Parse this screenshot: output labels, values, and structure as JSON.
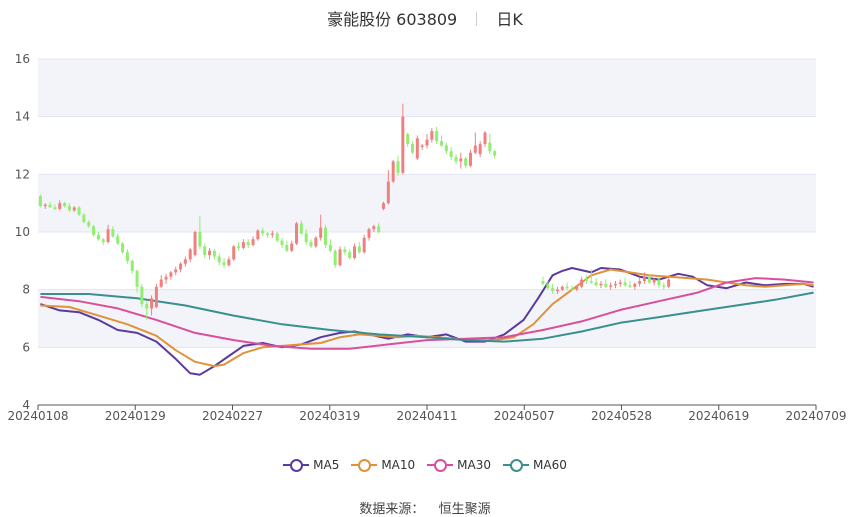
{
  "header": {
    "title": "豪能股份 603809",
    "period": "日K"
  },
  "source": {
    "label": "数据来源：",
    "name": "恒生聚源"
  },
  "colors": {
    "up": "#f08080",
    "down": "#90ee70",
    "grid_band": "#f3f4f9",
    "grid_line": "#e3e6f0"
  },
  "chart_data": {
    "type": "candlestick",
    "x_tick_labels": [
      "20240108",
      "20240129",
      "20240227",
      "20240319",
      "20240411",
      "20240507",
      "20240528",
      "20240619",
      "20240709"
    ],
    "y_ticks": [
      4,
      6,
      8,
      10,
      12,
      14,
      16
    ],
    "ylim": [
      4,
      16
    ],
    "legend_position": "bottom",
    "grid": true,
    "candles_ohlc": [
      [
        11.25,
        11.3,
        10.85,
        10.9
      ],
      [
        10.9,
        11.0,
        10.8,
        10.95
      ],
      [
        10.95,
        11.05,
        10.85,
        10.85
      ],
      [
        10.85,
        10.95,
        10.75,
        10.8
      ],
      [
        10.8,
        11.1,
        10.75,
        11.0
      ],
      [
        11.0,
        11.05,
        10.85,
        10.9
      ],
      [
        10.9,
        11.0,
        10.7,
        10.75
      ],
      [
        10.75,
        10.9,
        10.7,
        10.85
      ],
      [
        10.85,
        10.9,
        10.55,
        10.6
      ],
      [
        10.6,
        10.65,
        10.3,
        10.35
      ],
      [
        10.35,
        10.4,
        10.15,
        10.2
      ],
      [
        10.2,
        10.25,
        9.85,
        9.9
      ],
      [
        9.9,
        10.0,
        9.7,
        9.75
      ],
      [
        9.75,
        9.8,
        9.55,
        9.65
      ],
      [
        9.65,
        10.25,
        9.6,
        10.1
      ],
      [
        10.1,
        10.2,
        9.8,
        9.85
      ],
      [
        9.85,
        9.95,
        9.55,
        9.6
      ],
      [
        9.6,
        9.65,
        9.25,
        9.3
      ],
      [
        9.3,
        9.4,
        8.9,
        9.0
      ],
      [
        9.0,
        9.05,
        8.55,
        8.65
      ],
      [
        8.65,
        8.7,
        7.9,
        8.1
      ],
      [
        8.1,
        8.2,
        7.4,
        7.5
      ],
      [
        7.5,
        7.6,
        6.95,
        7.35
      ],
      [
        7.35,
        7.8,
        7.1,
        7.7
      ],
      [
        7.4,
        8.2,
        7.35,
        8.1
      ],
      [
        8.1,
        8.5,
        8.05,
        8.35
      ],
      [
        8.35,
        8.55,
        8.2,
        8.45
      ],
      [
        8.45,
        8.65,
        8.35,
        8.6
      ],
      [
        8.6,
        8.8,
        8.5,
        8.7
      ],
      [
        8.7,
        8.95,
        8.6,
        8.9
      ],
      [
        8.9,
        9.15,
        8.8,
        9.05
      ],
      [
        9.05,
        9.45,
        8.95,
        9.4
      ],
      [
        9.2,
        10.05,
        9.15,
        10.0
      ],
      [
        10.0,
        10.55,
        9.4,
        9.5
      ],
      [
        9.5,
        9.6,
        9.1,
        9.2
      ],
      [
        9.2,
        9.45,
        9.05,
        9.35
      ],
      [
        9.35,
        9.4,
        9.05,
        9.15
      ],
      [
        9.15,
        9.25,
        8.85,
        8.95
      ],
      [
        8.95,
        9.1,
        8.75,
        8.85
      ],
      [
        8.85,
        9.15,
        8.8,
        9.05
      ],
      [
        9.05,
        9.55,
        9.0,
        9.5
      ],
      [
        9.5,
        9.65,
        9.35,
        9.45
      ],
      [
        9.45,
        9.75,
        9.4,
        9.65
      ],
      [
        9.65,
        9.75,
        9.45,
        9.55
      ],
      [
        9.55,
        9.85,
        9.5,
        9.75
      ],
      [
        9.75,
        10.1,
        9.7,
        10.05
      ],
      [
        10.05,
        10.15,
        9.85,
        9.95
      ],
      [
        9.95,
        10.0,
        9.8,
        9.9
      ],
      [
        9.9,
        10.05,
        9.8,
        9.95
      ],
      [
        9.95,
        10.0,
        9.65,
        9.7
      ],
      [
        9.7,
        9.8,
        9.45,
        9.55
      ],
      [
        9.55,
        9.7,
        9.3,
        9.35
      ],
      [
        9.35,
        9.7,
        9.3,
        9.6
      ],
      [
        9.6,
        10.35,
        9.55,
        10.3
      ],
      [
        10.3,
        10.4,
        9.9,
        9.95
      ],
      [
        9.95,
        10.1,
        9.55,
        9.65
      ],
      [
        9.65,
        9.75,
        9.45,
        9.5
      ],
      [
        9.5,
        9.85,
        9.45,
        9.8
      ],
      [
        9.8,
        10.6,
        9.7,
        10.15
      ],
      [
        10.15,
        10.25,
        9.45,
        9.55
      ],
      [
        9.55,
        9.75,
        9.3,
        9.35
      ],
      [
        9.35,
        9.4,
        8.75,
        8.85
      ],
      [
        8.85,
        9.5,
        8.8,
        9.4
      ],
      [
        9.4,
        9.5,
        9.2,
        9.3
      ],
      [
        9.3,
        9.4,
        9.05,
        9.1
      ],
      [
        9.1,
        9.6,
        9.05,
        9.5
      ],
      [
        9.5,
        9.65,
        9.25,
        9.3
      ],
      [
        9.3,
        9.9,
        9.25,
        9.8
      ],
      [
        9.8,
        10.15,
        9.7,
        10.1
      ],
      [
        10.1,
        10.25,
        10.0,
        10.2
      ],
      [
        10.2,
        10.3,
        9.95,
        10.0
      ],
      [
        10.8,
        11.05,
        10.75,
        11.0
      ],
      [
        11.0,
        12.15,
        10.95,
        11.75
      ],
      [
        11.75,
        12.5,
        11.7,
        12.45
      ],
      [
        12.45,
        12.65,
        11.95,
        12.05
      ],
      [
        12.05,
        14.45,
        12.0,
        14.0
      ],
      [
        13.4,
        13.45,
        12.95,
        13.05
      ],
      [
        13.05,
        13.15,
        12.7,
        12.75
      ],
      [
        12.55,
        13.35,
        12.5,
        13.25
      ],
      [
        12.95,
        13.05,
        12.85,
        13.0
      ],
      [
        13.0,
        13.4,
        12.9,
        13.2
      ],
      [
        13.2,
        13.6,
        13.1,
        13.5
      ],
      [
        13.5,
        13.65,
        13.05,
        13.15
      ],
      [
        13.15,
        13.35,
        12.95,
        13.0
      ],
      [
        13.0,
        13.1,
        12.7,
        12.8
      ],
      [
        12.8,
        12.95,
        12.5,
        12.6
      ],
      [
        12.6,
        12.7,
        12.35,
        12.45
      ],
      [
        12.45,
        12.75,
        12.2,
        12.55
      ],
      [
        12.55,
        12.6,
        12.2,
        12.3
      ],
      [
        12.3,
        12.85,
        12.25,
        12.75
      ],
      [
        12.75,
        13.45,
        12.7,
        13.0
      ],
      [
        12.7,
        13.15,
        12.6,
        13.05
      ],
      [
        13.05,
        13.5,
        12.95,
        13.45
      ],
      [
        13.1,
        13.4,
        12.7,
        12.8
      ],
      [
        12.8,
        12.85,
        12.55,
        12.65
      ]
    ],
    "gap_start_index": 95,
    "gap_length": 9,
    "candles_after_gap_ohlc": [
      [
        8.3,
        8.45,
        8.15,
        8.2
      ],
      [
        8.2,
        8.3,
        8.0,
        8.05
      ],
      [
        8.05,
        8.2,
        7.85,
        7.95
      ],
      [
        7.95,
        8.1,
        7.85,
        8.0
      ],
      [
        8.0,
        8.15,
        7.95,
        8.1
      ],
      [
        8.1,
        8.25,
        8.0,
        8.05
      ],
      [
        8.05,
        8.15,
        7.95,
        8.0
      ],
      [
        8.0,
        8.15,
        7.95,
        8.1
      ],
      [
        8.1,
        8.45,
        8.05,
        8.35
      ],
      [
        8.35,
        8.5,
        8.2,
        8.3
      ],
      [
        8.3,
        8.7,
        8.2,
        8.25
      ],
      [
        8.25,
        8.4,
        8.1,
        8.15
      ],
      [
        8.15,
        8.3,
        8.05,
        8.2
      ],
      [
        8.2,
        8.35,
        8.05,
        8.1
      ],
      [
        8.1,
        8.25,
        8.0,
        8.15
      ],
      [
        8.15,
        8.3,
        8.05,
        8.2
      ],
      [
        8.2,
        8.35,
        8.1,
        8.25
      ],
      [
        8.25,
        8.4,
        8.1,
        8.15
      ],
      [
        8.15,
        8.3,
        8.05,
        8.1
      ],
      [
        8.1,
        8.25,
        8.0,
        8.2
      ],
      [
        8.2,
        8.4,
        8.1,
        8.3
      ],
      [
        8.3,
        8.6,
        8.2,
        8.45
      ],
      [
        8.45,
        8.55,
        8.2,
        8.25
      ],
      [
        8.25,
        8.4,
        8.15,
        8.35
      ],
      [
        8.35,
        8.45,
        8.05,
        8.15
      ],
      [
        8.15,
        8.25,
        8.0,
        8.1
      ],
      [
        8.1,
        8.4,
        8.05,
        8.35
      ]
    ],
    "series": [
      {
        "name": "MA5",
        "color": "#5b3a9e",
        "points": [
          [
            0,
            7.5
          ],
          [
            4,
            7.28
          ],
          [
            8,
            7.22
          ],
          [
            12,
            6.95
          ],
          [
            16,
            6.6
          ],
          [
            20,
            6.5
          ],
          [
            24,
            6.2
          ],
          [
            28,
            5.6
          ],
          [
            31,
            5.1
          ],
          [
            33,
            5.05
          ],
          [
            36,
            5.35
          ],
          [
            39,
            5.7
          ],
          [
            42,
            6.05
          ],
          [
            46,
            6.15
          ],
          [
            50,
            6.0
          ],
          [
            54,
            6.1
          ],
          [
            58,
            6.35
          ],
          [
            62,
            6.5
          ],
          [
            65,
            6.55
          ],
          [
            68,
            6.45
          ],
          [
            72,
            6.3
          ],
          [
            76,
            6.45
          ],
          [
            80,
            6.35
          ],
          [
            84,
            6.45
          ],
          [
            88,
            6.2
          ],
          [
            92,
            6.2
          ],
          [
            96,
            6.45
          ],
          [
            100,
            6.95
          ],
          [
            103,
            7.7
          ],
          [
            106,
            8.5
          ],
          [
            108,
            8.65
          ],
          [
            110,
            8.75
          ],
          [
            114,
            8.6
          ],
          [
            116,
            8.75
          ],
          [
            120,
            8.7
          ],
          [
            124,
            8.45
          ],
          [
            128,
            8.35
          ],
          [
            132,
            8.55
          ],
          [
            135,
            8.45
          ],
          [
            138,
            8.15
          ],
          [
            142,
            8.05
          ],
          [
            146,
            8.25
          ],
          [
            150,
            8.15
          ],
          [
            154,
            8.2
          ],
          [
            158,
            8.2
          ],
          [
            160,
            8.1
          ]
        ]
      },
      {
        "name": "MA10",
        "color": "#e0923a",
        "points": [
          [
            0,
            7.45
          ],
          [
            6,
            7.4
          ],
          [
            12,
            7.1
          ],
          [
            18,
            6.8
          ],
          [
            24,
            6.4
          ],
          [
            28,
            5.9
          ],
          [
            32,
            5.5
          ],
          [
            36,
            5.35
          ],
          [
            38,
            5.4
          ],
          [
            42,
            5.8
          ],
          [
            46,
            6.0
          ],
          [
            50,
            6.05
          ],
          [
            54,
            6.1
          ],
          [
            58,
            6.15
          ],
          [
            62,
            6.35
          ],
          [
            66,
            6.45
          ],
          [
            70,
            6.4
          ],
          [
            74,
            6.35
          ],
          [
            78,
            6.4
          ],
          [
            82,
            6.35
          ],
          [
            86,
            6.3
          ],
          [
            90,
            6.25
          ],
          [
            94,
            6.25
          ],
          [
            98,
            6.35
          ],
          [
            102,
            6.8
          ],
          [
            106,
            7.5
          ],
          [
            110,
            8.0
          ],
          [
            114,
            8.5
          ],
          [
            118,
            8.7
          ],
          [
            122,
            8.6
          ],
          [
            126,
            8.5
          ],
          [
            130,
            8.45
          ],
          [
            134,
            8.4
          ],
          [
            138,
            8.35
          ],
          [
            142,
            8.25
          ],
          [
            146,
            8.15
          ],
          [
            150,
            8.1
          ],
          [
            154,
            8.15
          ],
          [
            158,
            8.2
          ],
          [
            160,
            8.15
          ]
        ]
      },
      {
        "name": "MA30",
        "color": "#d94f9b",
        "points": [
          [
            0,
            7.75
          ],
          [
            8,
            7.6
          ],
          [
            16,
            7.35
          ],
          [
            24,
            6.95
          ],
          [
            32,
            6.5
          ],
          [
            40,
            6.25
          ],
          [
            48,
            6.05
          ],
          [
            56,
            5.95
          ],
          [
            64,
            5.95
          ],
          [
            72,
            6.1
          ],
          [
            80,
            6.25
          ],
          [
            88,
            6.3
          ],
          [
            96,
            6.35
          ],
          [
            104,
            6.6
          ],
          [
            112,
            6.9
          ],
          [
            120,
            7.3
          ],
          [
            128,
            7.6
          ],
          [
            136,
            7.9
          ],
          [
            142,
            8.25
          ],
          [
            148,
            8.4
          ],
          [
            154,
            8.35
          ],
          [
            160,
            8.25
          ]
        ]
      },
      {
        "name": "MA60",
        "color": "#3a8f8f",
        "points": [
          [
            0,
            7.85
          ],
          [
            10,
            7.85
          ],
          [
            20,
            7.7
          ],
          [
            30,
            7.45
          ],
          [
            40,
            7.1
          ],
          [
            50,
            6.8
          ],
          [
            60,
            6.6
          ],
          [
            70,
            6.45
          ],
          [
            80,
            6.35
          ],
          [
            88,
            6.25
          ],
          [
            96,
            6.2
          ],
          [
            104,
            6.3
          ],
          [
            112,
            6.55
          ],
          [
            120,
            6.85
          ],
          [
            128,
            7.05
          ],
          [
            136,
            7.25
          ],
          [
            144,
            7.45
          ],
          [
            152,
            7.65
          ],
          [
            160,
            7.9
          ]
        ]
      }
    ]
  }
}
